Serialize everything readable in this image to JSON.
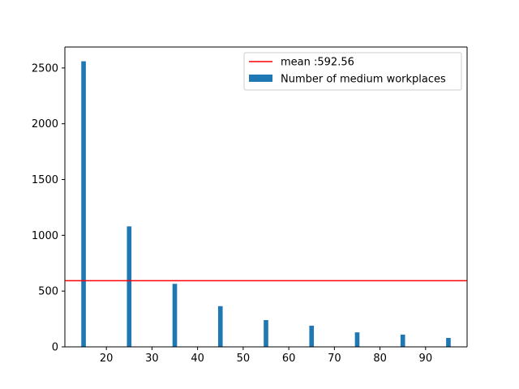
{
  "chart_data": {
    "type": "bar",
    "title": "",
    "xlabel": "",
    "ylabel": "",
    "x": [
      15,
      25,
      35,
      45,
      55,
      65,
      75,
      85,
      95
    ],
    "series": [
      {
        "name": "Number of medium workplaces",
        "values": [
          2560,
          1080,
          565,
          365,
          240,
          190,
          130,
          110,
          80
        ],
        "color": "#1f77b4"
      }
    ],
    "reference_lines": [
      {
        "label": "mean :592.56",
        "y": 592.56,
        "color": "#ff0000"
      }
    ],
    "xlim": [
      10.9,
      99.1
    ],
    "ylim": [
      0,
      2688
    ],
    "xticks": [
      20,
      30,
      40,
      50,
      60,
      70,
      80,
      90
    ],
    "yticks": [
      0,
      500,
      1000,
      1500,
      2000,
      2500
    ],
    "bar_width": 1,
    "grid": false,
    "legend_position": "upper right"
  }
}
